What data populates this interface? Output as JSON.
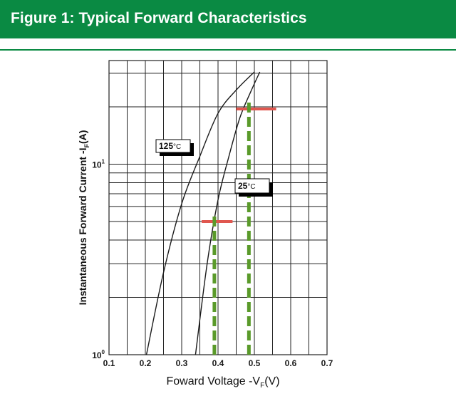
{
  "figure": {
    "title": "Figure 1: Typical Forward Characteristics"
  },
  "colors": {
    "banner": "#0a8a43",
    "curve": "#1a1a1a",
    "marker_red": "#e0574f",
    "marker_green": "#5a9a2a",
    "grid": "#222222"
  },
  "chart_data": {
    "type": "line",
    "xlabel_main": "Foward Voltage -V",
    "xlabel_sub": "F",
    "xlabel_unit": "(V)",
    "ylabel_main": "Instantaneous Forward Current -I",
    "ylabel_sub": "F",
    "ylabel_unit": "(A)",
    "xlim": [
      0.1,
      0.7
    ],
    "ylim": [
      1,
      35
    ],
    "yscale": "log",
    "grid": true,
    "x_ticks": [
      "0.1",
      "0.2",
      "0.3",
      "0.4",
      "0.5",
      "0.6",
      "0.7"
    ],
    "y_ticks": [
      {
        "base": "10",
        "exp": "0"
      },
      {
        "base": "10",
        "exp": "1"
      }
    ],
    "series": [
      {
        "name": "125°C",
        "x": [
          0.203,
          0.25,
          0.3,
          0.35,
          0.4,
          0.45,
          0.5
        ],
        "y": [
          1.0,
          2.7,
          6.2,
          11.0,
          18.5,
          24.5,
          30.5
        ]
      },
      {
        "name": "25°C",
        "x": [
          0.338,
          0.37,
          0.4,
          0.43,
          0.46,
          0.49,
          0.515
        ],
        "y": [
          1.0,
          3.0,
          6.5,
          11.0,
          17.5,
          24.0,
          30.5
        ]
      }
    ],
    "annotations": [
      {
        "text": "125",
        "unit": "°C",
        "series": "125°C"
      },
      {
        "text": "25",
        "unit": "°C",
        "series": "25°C"
      }
    ],
    "markers": [
      {
        "kind": "horizontal",
        "color": "red",
        "y": 5.0,
        "x_from": 0.355,
        "x_to": 0.44
      },
      {
        "kind": "horizontal",
        "color": "red",
        "y": 19.5,
        "x_from": 0.45,
        "x_to": 0.56
      },
      {
        "kind": "vertical",
        "color": "green",
        "x": 0.39,
        "y_from": 1.0,
        "y_to": 5.5
      },
      {
        "kind": "vertical",
        "color": "green",
        "x": 0.485,
        "y_from": 1.0,
        "y_to": 21.5
      }
    ]
  }
}
